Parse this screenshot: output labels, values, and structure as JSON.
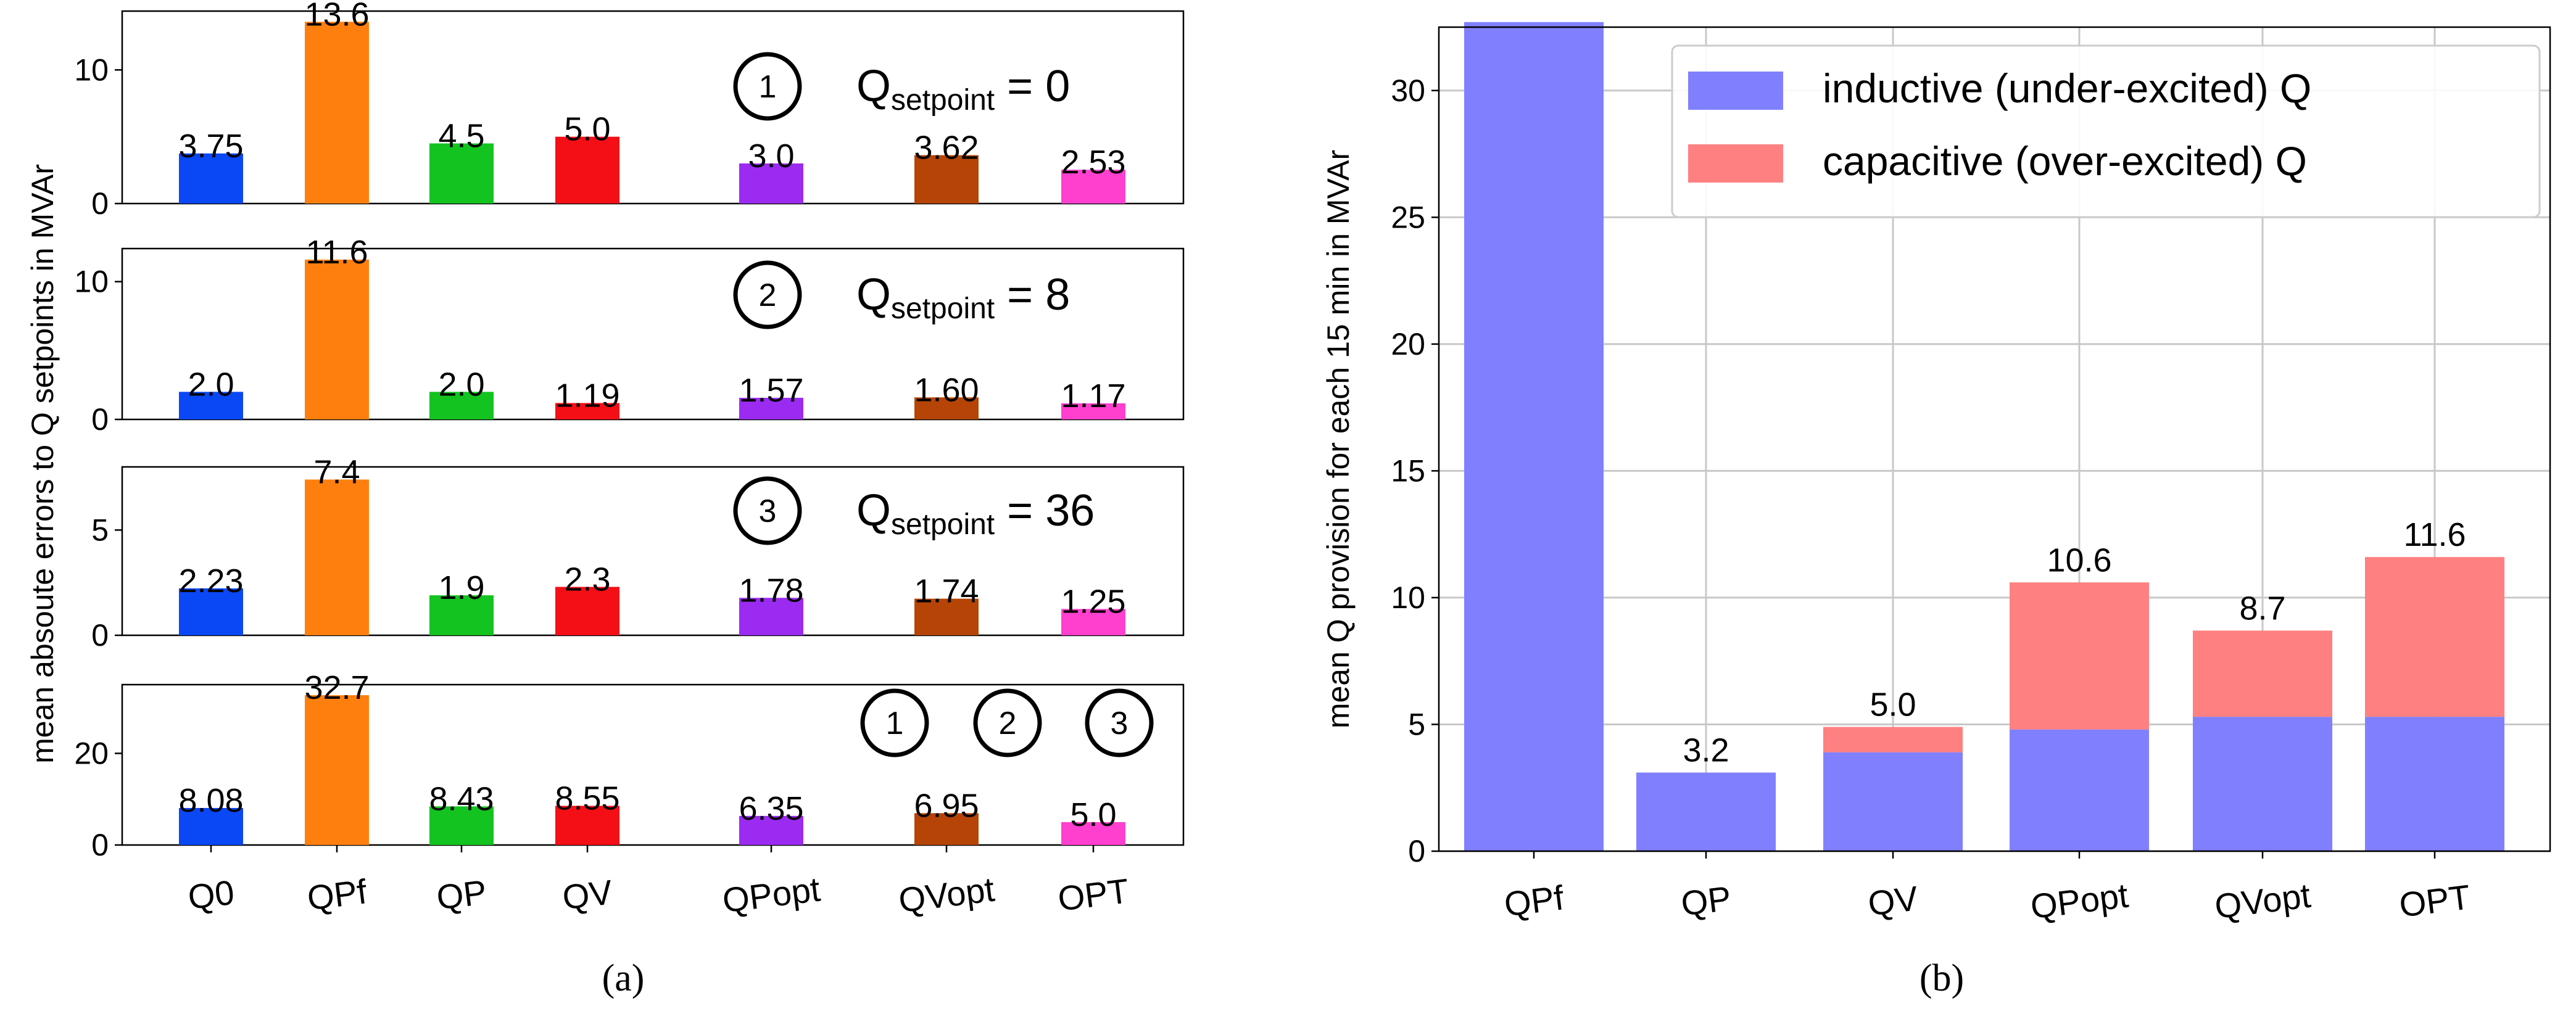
{
  "chart_data": [
    {
      "type": "bar",
      "panel": "a",
      "ylabel": "mean absoute errors to Q setpoints in MVAr",
      "categories": [
        "Q0",
        "QPf",
        "QP",
        "QV",
        "QPopt",
        "QVopt",
        "OPT"
      ],
      "colors": [
        "#0a47f5",
        "#ff7f0e",
        "#13c31f",
        "#f40e16",
        "#9b2bf0",
        "#b54406",
        "#ff3fce"
      ],
      "caption": "(a)",
      "subplots": [
        {
          "ylim": [
            0,
            14.4
          ],
          "yticks": [
            "0",
            "10"
          ],
          "ytick_values": [
            0,
            10
          ],
          "values": [
            3.75,
            13.6,
            4.5,
            5.0,
            3.0,
            3.62,
            2.53
          ],
          "data_labels": [
            "3.75",
            "13.6",
            "4.5",
            "5.0",
            "3.0",
            "3.62",
            "2.53"
          ],
          "markers": [
            "1"
          ],
          "setpoint": {
            "q": "Q",
            "sub": "setpoint",
            "rest": " = 0"
          }
        },
        {
          "ylim": [
            0,
            12.4
          ],
          "yticks": [
            "0",
            "10"
          ],
          "ytick_values": [
            0,
            10
          ],
          "values": [
            2.0,
            11.6,
            2.0,
            1.19,
            1.57,
            1.6,
            1.17
          ],
          "data_labels": [
            "2.0",
            "11.6",
            "2.0",
            "1.19",
            "1.57",
            "1.60",
            "1.17"
          ],
          "markers": [
            "2"
          ],
          "setpoint": {
            "q": "Q",
            "sub": "setpoint",
            "rest": " = 8"
          }
        },
        {
          "ylim": [
            0,
            8.0
          ],
          "yticks": [
            "0",
            "5"
          ],
          "ytick_values": [
            0,
            5
          ],
          "values": [
            2.23,
            7.4,
            1.9,
            2.3,
            1.78,
            1.74,
            1.25
          ],
          "data_labels": [
            "2.23",
            "7.4",
            "1.9",
            "2.3",
            "1.78",
            "1.74",
            "1.25"
          ],
          "markers": [
            "3"
          ],
          "setpoint": {
            "q": "Q",
            "sub": "setpoint",
            "rest": " = 36"
          }
        },
        {
          "ylim": [
            0,
            35.0
          ],
          "yticks": [
            "0",
            "20"
          ],
          "ytick_values": [
            0,
            20
          ],
          "values": [
            8.08,
            32.7,
            8.43,
            8.55,
            6.35,
            6.95,
            5.0
          ],
          "data_labels": [
            "8.08",
            "32.7",
            "8.43",
            "8.55",
            "6.35",
            "6.95",
            "5.0"
          ],
          "markers": [
            "1",
            "2",
            "3"
          ],
          "setpoint": null
        }
      ]
    },
    {
      "type": "stacked_bar",
      "panel": "b",
      "ylabel": "mean Q provision for each 15 min in MVAr",
      "categories": [
        "QPf",
        "QP",
        "QV",
        "QPopt",
        "QVopt",
        "OPT"
      ],
      "ylim": [
        0,
        32.5
      ],
      "yticks": [
        "0",
        "5",
        "10",
        "15",
        "20",
        "25",
        "30"
      ],
      "ytick_values": [
        0,
        5,
        10,
        15,
        20,
        25,
        30
      ],
      "grid": true,
      "legend_position": "top-right",
      "series": [
        {
          "name": "inductive (under-excited) Q",
          "color": "#8080ff",
          "values": [
            32.7,
            3.1,
            3.9,
            4.8,
            5.3,
            5.3
          ]
        },
        {
          "name": "capacitive (over-excited) Q",
          "color": "#ff8080",
          "values": [
            0,
            0,
            1.0,
            5.8,
            3.4,
            6.3
          ]
        }
      ],
      "data_labels": [
        "",
        "3.2",
        "5.0",
        "10.6",
        "8.7",
        "11.6"
      ],
      "caption": "(b)"
    }
  ]
}
